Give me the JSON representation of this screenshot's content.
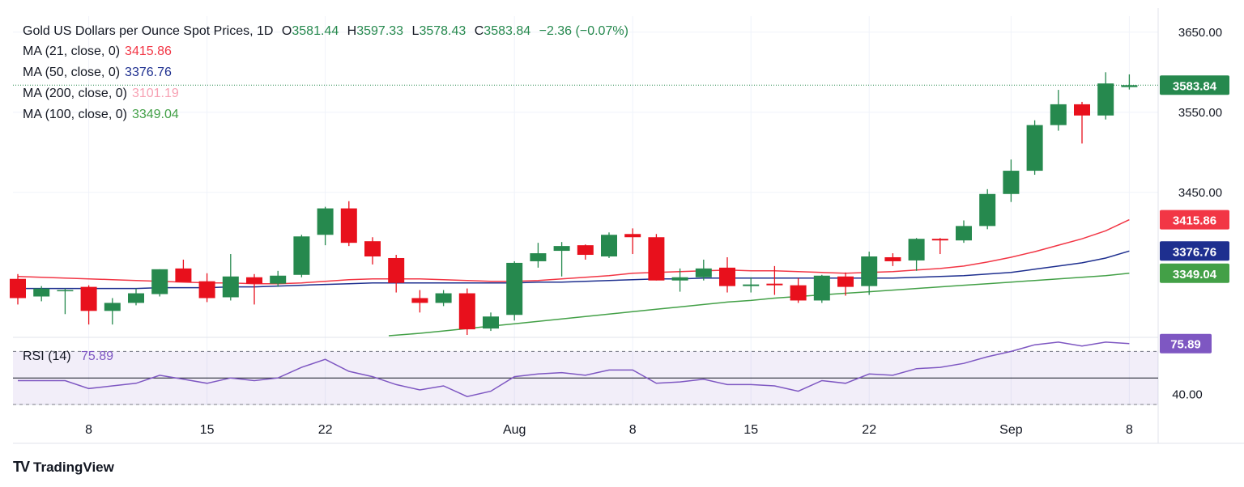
{
  "header": {
    "symbol": "Gold US Dollars per Ounce Spot Prices, 1D",
    "open_label": "O",
    "open": "3581.44",
    "high_label": "H",
    "high": "3597.33",
    "low_label": "L",
    "low": "3578.43",
    "close_label": "C",
    "close": "3583.84",
    "change": "−2.36 (−0.07%)"
  },
  "indicators": [
    {
      "label": "MA (21, close, 0)",
      "value": "3415.86",
      "color": "#f23645"
    },
    {
      "label": "MA (50, close, 0)",
      "value": "3376.76",
      "color": "#1e2f8f"
    },
    {
      "label": "MA (200, close, 0)",
      "value": "3101.19",
      "color": "#f7a1b3"
    },
    {
      "label": "MA (100, close, 0)",
      "value": "3349.04",
      "color": "#43a047"
    }
  ],
  "brand": "TradingView",
  "colors": {
    "up": "#26894e",
    "down": "#e8101c",
    "ma21": "#f23645",
    "ma50": "#1e2f8f",
    "ma100": "#43a047",
    "rsi": "#7e57c2"
  },
  "chart_data": {
    "type": "candlestick",
    "title": "Gold US Dollars per Ounce Spot Prices, 1D",
    "price_axis": {
      "range": [
        3270,
        3670
      ],
      "ticks": [
        "3650.00",
        "3550.00",
        "3450.00"
      ]
    },
    "x_tick_labels": [
      {
        "index": 3,
        "label": "8"
      },
      {
        "index": 8,
        "label": "15"
      },
      {
        "index": 13,
        "label": "22"
      },
      {
        "index": 21,
        "label": "Aug"
      },
      {
        "index": 26,
        "label": "8"
      },
      {
        "index": 31,
        "label": "15"
      },
      {
        "index": 36,
        "label": "22"
      },
      {
        "index": 42,
        "label": "Sep"
      },
      {
        "index": 47,
        "label": "8"
      }
    ],
    "candles": [
      {
        "o": 3342,
        "h": 3348,
        "l": 3310,
        "c": 3318
      },
      {
        "o": 3320,
        "h": 3333,
        "l": 3314,
        "c": 3330
      },
      {
        "o": 3328,
        "h": 3330,
        "l": 3298,
        "c": 3328
      },
      {
        "o": 3332,
        "h": 3334,
        "l": 3285,
        "c": 3302
      },
      {
        "o": 3302,
        "h": 3318,
        "l": 3285,
        "c": 3312
      },
      {
        "o": 3312,
        "h": 3330,
        "l": 3309,
        "c": 3324
      },
      {
        "o": 3323,
        "h": 3354,
        "l": 3320,
        "c": 3354
      },
      {
        "o": 3355,
        "h": 3366,
        "l": 3340,
        "c": 3338
      },
      {
        "o": 3339,
        "h": 3349,
        "l": 3313,
        "c": 3318
      },
      {
        "o": 3319,
        "h": 3373,
        "l": 3315,
        "c": 3345
      },
      {
        "o": 3344,
        "h": 3348,
        "l": 3310,
        "c": 3336
      },
      {
        "o": 3336,
        "h": 3352,
        "l": 3332,
        "c": 3346
      },
      {
        "o": 3347,
        "h": 3397,
        "l": 3344,
        "c": 3395
      },
      {
        "o": 3397,
        "h": 3432,
        "l": 3384,
        "c": 3430
      },
      {
        "o": 3430,
        "h": 3439,
        "l": 3383,
        "c": 3387
      },
      {
        "o": 3389,
        "h": 3394,
        "l": 3360,
        "c": 3370
      },
      {
        "o": 3368,
        "h": 3372,
        "l": 3325,
        "c": 3337
      },
      {
        "o": 3318,
        "h": 3328,
        "l": 3300,
        "c": 3312
      },
      {
        "o": 3312,
        "h": 3328,
        "l": 3308,
        "c": 3324
      },
      {
        "o": 3324,
        "h": 3330,
        "l": 3272,
        "c": 3279
      },
      {
        "o": 3280,
        "h": 3300,
        "l": 3277,
        "c": 3295
      },
      {
        "o": 3297,
        "h": 3364,
        "l": 3290,
        "c": 3362
      },
      {
        "o": 3364,
        "h": 3387,
        "l": 3356,
        "c": 3374
      },
      {
        "o": 3377,
        "h": 3388,
        "l": 3345,
        "c": 3383
      },
      {
        "o": 3384,
        "h": 3385,
        "l": 3366,
        "c": 3372
      },
      {
        "o": 3370,
        "h": 3400,
        "l": 3368,
        "c": 3397
      },
      {
        "o": 3398,
        "h": 3405,
        "l": 3373,
        "c": 3394
      },
      {
        "o": 3394,
        "h": 3398,
        "l": 3340,
        "c": 3340
      },
      {
        "o": 3340,
        "h": 3355,
        "l": 3326,
        "c": 3344
      },
      {
        "o": 3344,
        "h": 3366,
        "l": 3340,
        "c": 3355
      },
      {
        "o": 3356,
        "h": 3369,
        "l": 3325,
        "c": 3333
      },
      {
        "o": 3333,
        "h": 3344,
        "l": 3325,
        "c": 3335
      },
      {
        "o": 3336,
        "h": 3358,
        "l": 3322,
        "c": 3334
      },
      {
        "o": 3334,
        "h": 3343,
        "l": 3312,
        "c": 3315
      },
      {
        "o": 3315,
        "h": 3347,
        "l": 3312,
        "c": 3346
      },
      {
        "o": 3345,
        "h": 3350,
        "l": 3321,
        "c": 3332
      },
      {
        "o": 3333,
        "h": 3376,
        "l": 3322,
        "c": 3370
      },
      {
        "o": 3369,
        "h": 3374,
        "l": 3358,
        "c": 3364
      },
      {
        "o": 3365,
        "h": 3393,
        "l": 3352,
        "c": 3392
      },
      {
        "o": 3392,
        "h": 3393,
        "l": 3373,
        "c": 3390
      },
      {
        "o": 3390,
        "h": 3415,
        "l": 3387,
        "c": 3408
      },
      {
        "o": 3408,
        "h": 3454,
        "l": 3404,
        "c": 3448
      },
      {
        "o": 3448,
        "h": 3491,
        "l": 3438,
        "c": 3477
      },
      {
        "o": 3477,
        "h": 3540,
        "l": 3472,
        "c": 3534
      },
      {
        "o": 3534,
        "h": 3578,
        "l": 3527,
        "c": 3560
      },
      {
        "o": 3560,
        "h": 3563,
        "l": 3511,
        "c": 3546
      },
      {
        "o": 3546,
        "h": 3600,
        "l": 3541,
        "c": 3586
      },
      {
        "o": 3581.44,
        "h": 3597.33,
        "l": 3578.43,
        "c": 3583.84
      }
    ],
    "moving_averages": [
      {
        "name": "MA 21",
        "values": [
          3345,
          3344,
          3343,
          3342,
          3341,
          3340,
          3339,
          3338,
          3337,
          3337,
          3336,
          3336,
          3337,
          3339,
          3341,
          3342,
          3342,
          3342,
          3341,
          3340,
          3339,
          3339,
          3340,
          3342,
          3344,
          3346,
          3349,
          3350,
          3351,
          3352,
          3353,
          3352,
          3352,
          3351,
          3350,
          3349,
          3350,
          3351,
          3353,
          3355,
          3358,
          3363,
          3369,
          3376,
          3384,
          3392,
          3402,
          3415.86
        ]
      },
      {
        "name": "MA 50",
        "values": [
          3330,
          3330,
          3330,
          3330,
          3330,
          3330,
          3331,
          3331,
          3331,
          3332,
          3332,
          3333,
          3334,
          3335,
          3336,
          3337,
          3337,
          3337,
          3337,
          3337,
          3337,
          3337,
          3338,
          3338,
          3339,
          3340,
          3341,
          3342,
          3342,
          3343,
          3343,
          3343,
          3343,
          3343,
          3343,
          3343,
          3343,
          3343,
          3344,
          3345,
          3346,
          3348,
          3350,
          3354,
          3358,
          3362,
          3368,
          3376.76
        ]
      },
      {
        "name": "MA 100",
        "values": [
          null,
          null,
          null,
          null,
          null,
          null,
          null,
          null,
          null,
          null,
          null,
          null,
          null,
          null,
          null,
          null,
          3271,
          3274,
          3277,
          3280,
          3283,
          3286,
          3289,
          3292,
          3295,
          3298,
          3301,
          3304,
          3307,
          3310,
          3313,
          3315,
          3318,
          3320,
          3322,
          3324,
          3326,
          3328,
          3330,
          3332,
          3334,
          3336,
          3338,
          3340,
          3342,
          3344,
          3346,
          3349.04
        ]
      }
    ],
    "last_price": 3583.84,
    "price_labels": [
      {
        "value": "3583.84",
        "color": "#26894e"
      },
      {
        "value": "3415.86",
        "color": "#f23645"
      },
      {
        "value": "3376.76",
        "color": "#1e2f8f"
      },
      {
        "value": "3349.04",
        "color": "#43a047"
      }
    ],
    "rsi": {
      "label": "RSI (14)",
      "value": "75.89",
      "range": [
        30,
        80
      ],
      "overbought": 70,
      "oversold": 30,
      "ticks": [
        "40.00"
      ],
      "values": [
        48,
        48,
        48,
        42,
        44,
        46,
        52,
        49,
        46,
        50,
        48,
        50,
        58,
        64,
        55,
        51,
        45,
        41,
        44,
        36,
        40,
        51,
        53,
        54,
        52,
        56,
        56,
        46,
        47,
        49,
        45,
        45,
        44,
        40,
        48,
        46,
        53,
        52,
        57,
        58,
        61,
        66,
        70,
        75,
        77,
        74,
        77,
        75.89
      ]
    }
  }
}
